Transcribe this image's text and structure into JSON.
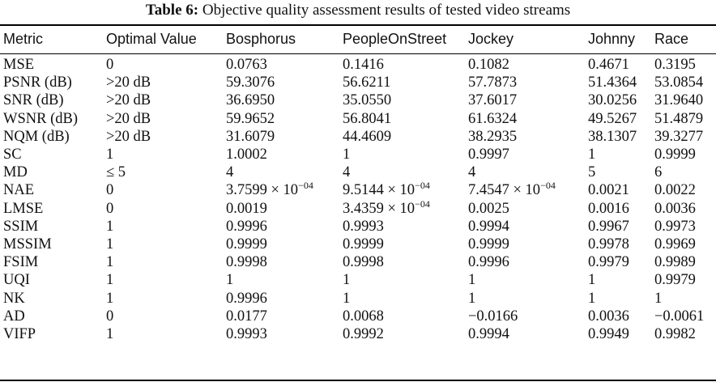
{
  "caption": {
    "label": "Table 6:",
    "text": "Objective quality assessment results of tested video streams"
  },
  "table": {
    "headers": [
      "Metric",
      "Optimal Value",
      "Bosphorus",
      "PeopleOnStreet",
      "Jockey",
      "Johnny",
      "Race"
    ],
    "rows": [
      [
        "MSE",
        "0",
        "0.0763",
        "0.1416",
        "0.1082",
        "0.4671",
        "0.3195"
      ],
      [
        "PSNR (dB)",
        ">20 dB",
        "59.3076",
        "56.6211",
        "57.7873",
        "51.4364",
        "53.0854"
      ],
      [
        "SNR (dB)",
        ">20 dB",
        "36.6950",
        "35.0550",
        "37.6017",
        "30.0256",
        "31.9640"
      ],
      [
        "WSNR (dB)",
        ">20 dB",
        "59.9652",
        "56.8041",
        "61.6324",
        "49.5267",
        "51.4879"
      ],
      [
        "NQM (dB)",
        ">20 dB",
        "31.6079",
        "44.4609",
        "38.2935",
        "38.1307",
        "39.3277"
      ],
      [
        "SC",
        "1",
        "1.0002",
        "1",
        "0.9997",
        "1",
        "0.9999"
      ],
      [
        "MD",
        "≤ 5",
        "4",
        "4",
        "4",
        "5",
        "6"
      ],
      [
        "NAE",
        "0",
        "3.7599 × 10^−04",
        "9.5144 × 10^−04",
        "7.4547 × 10^−04",
        "0.0021",
        "0.0022"
      ],
      [
        "LMSE",
        "0",
        "0.0019",
        "3.4359 × 10^−04",
        "0.0025",
        "0.0016",
        "0.0036"
      ],
      [
        "SSIM",
        "1",
        "0.9996",
        "0.9993",
        "0.9994",
        "0.9967",
        "0.9973"
      ],
      [
        "MSSIM",
        "1",
        "0.9999",
        "0.9999",
        "0.9999",
        "0.9978",
        "0.9969"
      ],
      [
        "FSIM",
        "1",
        "0.9998",
        "0.9998",
        "0.9996",
        "0.9979",
        "0.9989"
      ],
      [
        "UQI",
        "1",
        "1",
        "1",
        "1",
        "1",
        "0.9979"
      ],
      [
        "NK",
        "1",
        "0.9996",
        "1",
        "1",
        "1",
        "1"
      ],
      [
        "AD",
        "0",
        "0.0177",
        "0.0068",
        "−0.0166",
        "0.0036",
        "−0.0061"
      ],
      [
        "VIFP",
        "1",
        "0.9993",
        "0.9992",
        "0.9994",
        "0.9949",
        "0.9982"
      ]
    ]
  }
}
